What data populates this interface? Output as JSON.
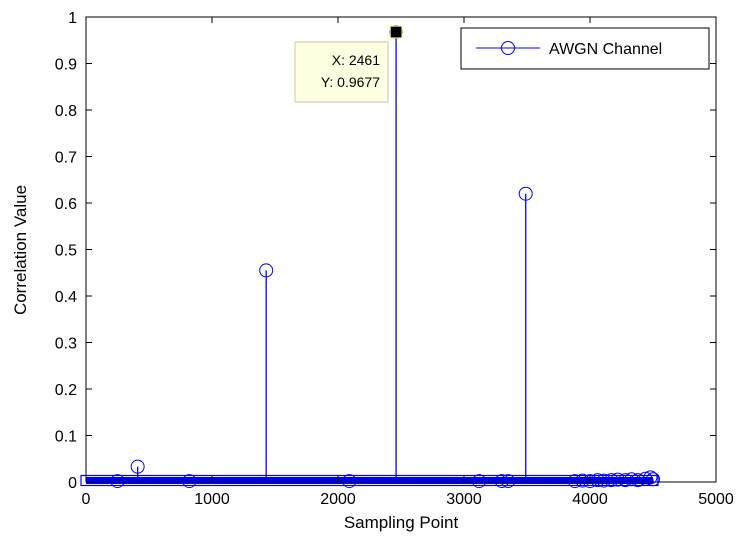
{
  "chart_data": {
    "type": "stem",
    "title": "",
    "xlabel": "Sampling Point",
    "ylabel": "Correlation Value",
    "xlim": [
      0,
      5000
    ],
    "ylim": [
      0,
      1
    ],
    "xticks": [
      0,
      1000,
      2000,
      3000,
      4000,
      5000
    ],
    "yticks": [
      0,
      0.1,
      0.2,
      0.3,
      0.4,
      0.5,
      0.6,
      0.7,
      0.8,
      0.9,
      1
    ],
    "xtick_labels": [
      "0",
      "1000",
      "2000",
      "3000",
      "4000",
      "5000"
    ],
    "ytick_labels": [
      "0",
      "0.1",
      "0.2",
      "0.3",
      "0.4",
      "0.5",
      "0.6",
      "0.7",
      "0.8",
      "0.9",
      "1"
    ],
    "grid": false,
    "legend_position": "top-right",
    "series": [
      {
        "name": "AWGN Channel",
        "color": "#0000ff",
        "marker": "circle",
        "baseline_x_range": [
          0,
          4500
        ],
        "points": [
          {
            "x": 250,
            "y": 0.002
          },
          {
            "x": 410,
            "y": 0.033
          },
          {
            "x": 820,
            "y": 0.002
          },
          {
            "x": 1430,
            "y": 0.455
          },
          {
            "x": 2090,
            "y": 0.002
          },
          {
            "x": 2461,
            "y": 0.9677
          },
          {
            "x": 3120,
            "y": 0.002
          },
          {
            "x": 3300,
            "y": 0.002
          },
          {
            "x": 3350,
            "y": 0.002
          },
          {
            "x": 3490,
            "y": 0.62
          },
          {
            "x": 3880,
            "y": 0.002
          },
          {
            "x": 3940,
            "y": 0.003
          },
          {
            "x": 4000,
            "y": 0.002
          },
          {
            "x": 4060,
            "y": 0.004
          },
          {
            "x": 4110,
            "y": 0.003
          },
          {
            "x": 4170,
            "y": 0.004
          },
          {
            "x": 4220,
            "y": 0.005
          },
          {
            "x": 4280,
            "y": 0.004
          },
          {
            "x": 4330,
            "y": 0.006
          },
          {
            "x": 4380,
            "y": 0.004
          },
          {
            "x": 4440,
            "y": 0.007
          },
          {
            "x": 4480,
            "y": 0.01
          },
          {
            "x": 4500,
            "y": 0.006
          }
        ]
      }
    ],
    "datatip": {
      "x": 2461,
      "y": 0.9677,
      "x_text": "X: 2461",
      "y_text": "Y: 0.9677"
    }
  }
}
